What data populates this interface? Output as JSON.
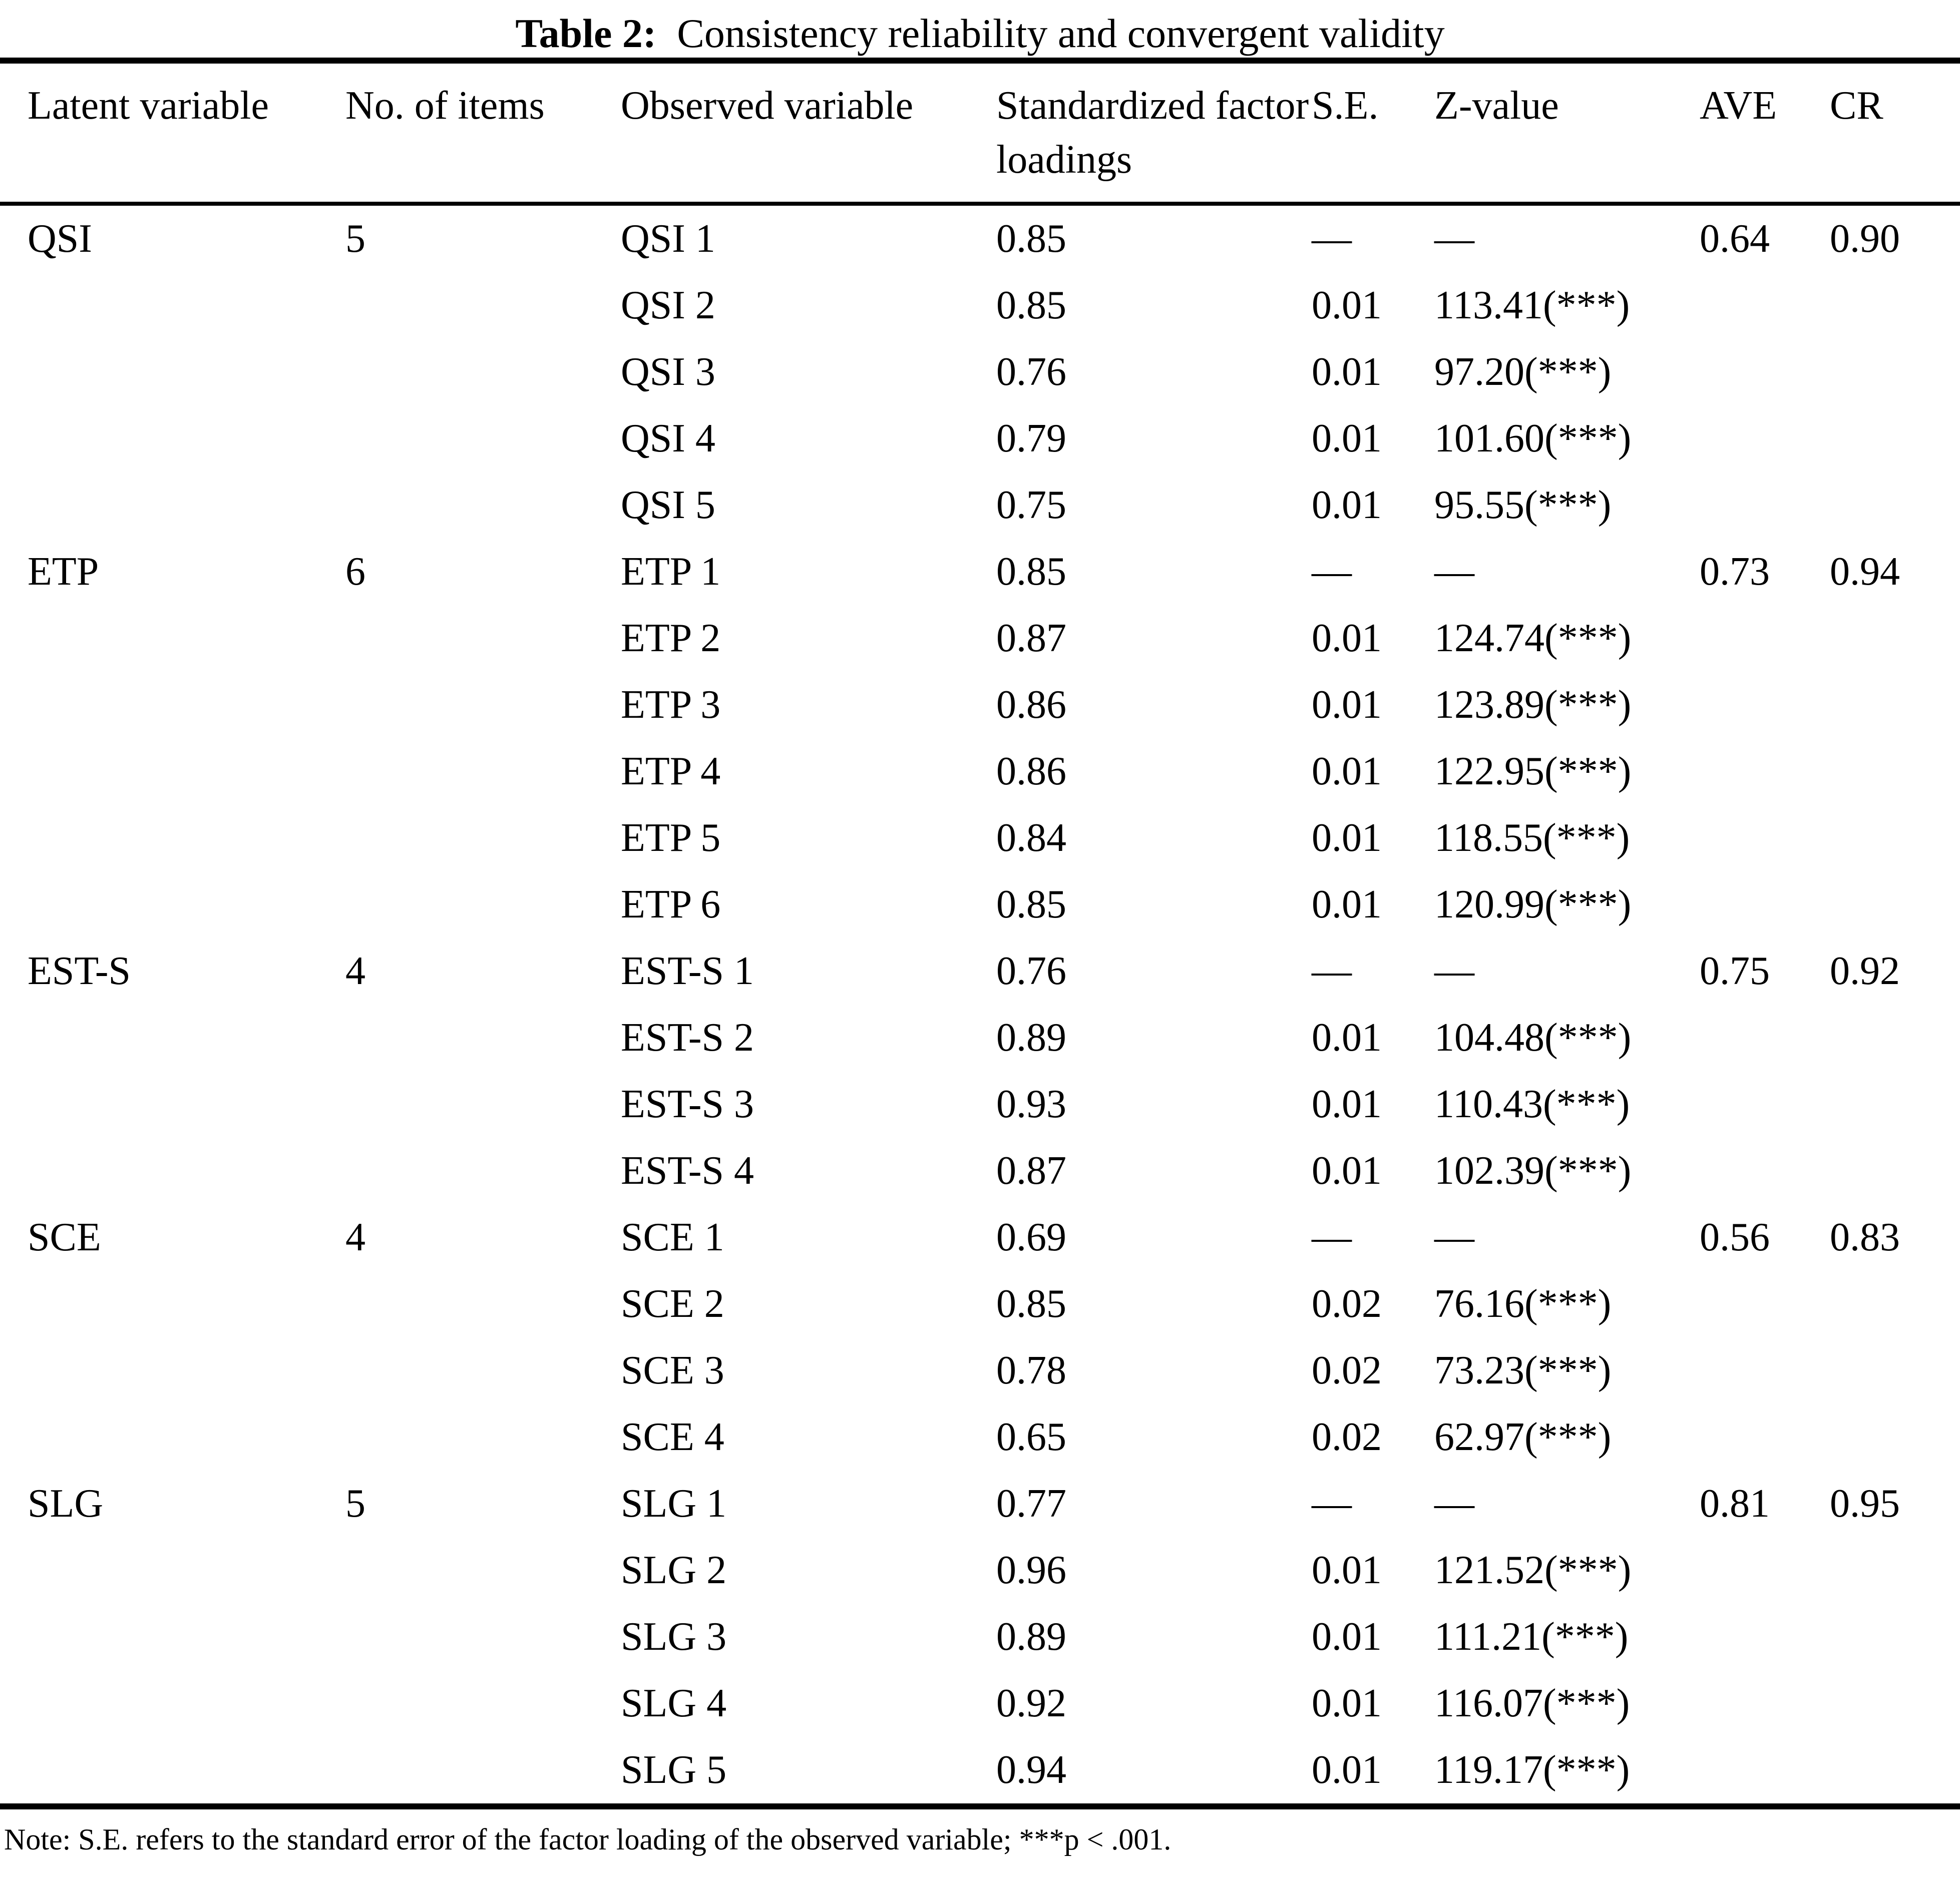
{
  "title": {
    "label": "Table 2:",
    "text": "Consistency reliability and convergent validity"
  },
  "table": {
    "columns": [
      "Latent variable",
      "No. of items",
      "Observed variable",
      "Standardized factor loadings",
      "S.E.",
      "Z-value",
      "AVE",
      "CR"
    ],
    "rows": [
      {
        "latent": "QSI",
        "items": "5",
        "observed": "QSI 1",
        "loading": "0.85",
        "se": "—",
        "z": "—",
        "ave": "0.64",
        "cr": "0.90"
      },
      {
        "latent": "",
        "items": "",
        "observed": "QSI 2",
        "loading": "0.85",
        "se": "0.01",
        "z": "113.41(***)",
        "ave": "",
        "cr": ""
      },
      {
        "latent": "",
        "items": "",
        "observed": "QSI 3",
        "loading": "0.76",
        "se": "0.01",
        "z": "97.20(***)",
        "ave": "",
        "cr": ""
      },
      {
        "latent": "",
        "items": "",
        "observed": "QSI 4",
        "loading": "0.79",
        "se": "0.01",
        "z": "101.60(***)",
        "ave": "",
        "cr": ""
      },
      {
        "latent": "",
        "items": "",
        "observed": "QSI 5",
        "loading": "0.75",
        "se": "0.01",
        "z": "95.55(***)",
        "ave": "",
        "cr": ""
      },
      {
        "latent": "ETP",
        "items": "6",
        "observed": "ETP 1",
        "loading": "0.85",
        "se": "—",
        "z": "—",
        "ave": "0.73",
        "cr": "0.94"
      },
      {
        "latent": "",
        "items": "",
        "observed": "ETP 2",
        "loading": "0.87",
        "se": "0.01",
        "z": "124.74(***)",
        "ave": "",
        "cr": ""
      },
      {
        "latent": "",
        "items": "",
        "observed": "ETP 3",
        "loading": "0.86",
        "se": "0.01",
        "z": "123.89(***)",
        "ave": "",
        "cr": ""
      },
      {
        "latent": "",
        "items": "",
        "observed": "ETP 4",
        "loading": "0.86",
        "se": "0.01",
        "z": "122.95(***)",
        "ave": "",
        "cr": ""
      },
      {
        "latent": "",
        "items": "",
        "observed": "ETP 5",
        "loading": "0.84",
        "se": "0.01",
        "z": "118.55(***)",
        "ave": "",
        "cr": ""
      },
      {
        "latent": "",
        "items": "",
        "observed": "ETP 6",
        "loading": "0.85",
        "se": "0.01",
        "z": "120.99(***)",
        "ave": "",
        "cr": ""
      },
      {
        "latent": "EST-S",
        "items": "4",
        "observed": "EST-S 1",
        "loading": "0.76",
        "se": "—",
        "z": "—",
        "ave": "0.75",
        "cr": "0.92"
      },
      {
        "latent": "",
        "items": "",
        "observed": "EST-S 2",
        "loading": "0.89",
        "se": "0.01",
        "z": "104.48(***)",
        "ave": "",
        "cr": ""
      },
      {
        "latent": "",
        "items": "",
        "observed": "EST-S 3",
        "loading": "0.93",
        "se": "0.01",
        "z": "110.43(***)",
        "ave": "",
        "cr": ""
      },
      {
        "latent": "",
        "items": "",
        "observed": "EST-S 4",
        "loading": "0.87",
        "se": "0.01",
        "z": "102.39(***)",
        "ave": "",
        "cr": ""
      },
      {
        "latent": "SCE",
        "items": "4",
        "observed": "SCE 1",
        "loading": "0.69",
        "se": "—",
        "z": "—",
        "ave": "0.56",
        "cr": "0.83"
      },
      {
        "latent": "",
        "items": "",
        "observed": "SCE 2",
        "loading": "0.85",
        "se": "0.02",
        "z": "76.16(***)",
        "ave": "",
        "cr": ""
      },
      {
        "latent": "",
        "items": "",
        "observed": "SCE 3",
        "loading": "0.78",
        "se": "0.02",
        "z": "73.23(***)",
        "ave": "",
        "cr": ""
      },
      {
        "latent": "",
        "items": "",
        "observed": "SCE 4",
        "loading": "0.65",
        "se": "0.02",
        "z": "62.97(***)",
        "ave": "",
        "cr": ""
      },
      {
        "latent": "SLG",
        "items": "5",
        "observed": "SLG 1",
        "loading": "0.77",
        "se": "—",
        "z": "—",
        "ave": "0.81",
        "cr": "0.95"
      },
      {
        "latent": "",
        "items": "",
        "observed": "SLG 2",
        "loading": "0.96",
        "se": "0.01",
        "z": "121.52(***)",
        "ave": "",
        "cr": ""
      },
      {
        "latent": "",
        "items": "",
        "observed": "SLG 3",
        "loading": "0.89",
        "se": "0.01",
        "z": "111.21(***)",
        "ave": "",
        "cr": ""
      },
      {
        "latent": "",
        "items": "",
        "observed": "SLG 4",
        "loading": "0.92",
        "se": "0.01",
        "z": "116.07(***)",
        "ave": "",
        "cr": ""
      },
      {
        "latent": "",
        "items": "",
        "observed": "SLG 5",
        "loading": "0.94",
        "se": "0.01",
        "z": "119.17(***)",
        "ave": "",
        "cr": ""
      }
    ]
  },
  "note": "Note: S.E. refers to the standard error of the factor loading of the observed variable; ***p < .001."
}
